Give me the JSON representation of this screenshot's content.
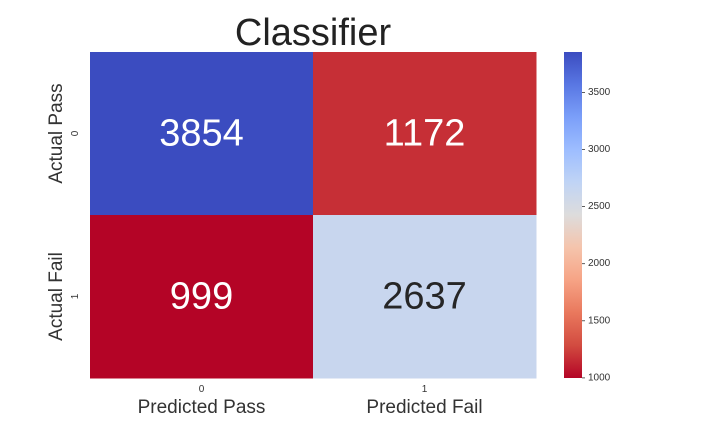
{
  "chart_data": {
    "type": "heatmap",
    "title": "Classifier",
    "x_tick_labels": [
      "0",
      "1"
    ],
    "y_tick_labels": [
      "0",
      "1"
    ],
    "x_labels": [
      "Predicted Pass",
      "Predicted Fail"
    ],
    "y_labels": [
      "Actual Pass",
      "Actual Fail"
    ],
    "matrix": [
      [
        3854,
        1172
      ],
      [
        999,
        2637
      ]
    ],
    "colormap": "coolwarm",
    "colorbar": {
      "min": 999,
      "max": 3854,
      "ticks": [
        1000,
        1500,
        2000,
        2500,
        3000,
        3500
      ]
    },
    "colors": {
      "low": "#b40426",
      "mid": "#dddcdc",
      "high": "#3b4cc0",
      "text_dark": "#262626",
      "text_light": "#ffffff"
    }
  }
}
